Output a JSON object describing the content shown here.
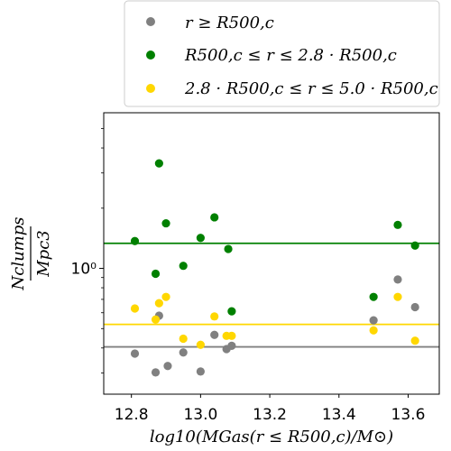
{
  "chart_data": {
    "type": "scatter",
    "x_label": "log10(MGas(r ≤ R500,c)/M⊙)",
    "y_label_numerator": "Nclumps",
    "y_label_denominator": "Mpc3",
    "y_scale": "log",
    "xlim": [
      12.72,
      13.69
    ],
    "ylim": [
      0.235,
      6.0
    ],
    "x_ticks": [
      12.8,
      13.0,
      13.2,
      13.4,
      13.6
    ],
    "x_tick_labels": [
      "12.8",
      "13.0",
      "13.2",
      "13.4",
      "13.6"
    ],
    "y_major_ticks": [
      1.0
    ],
    "y_major_tick_labels": [
      "10⁰"
    ],
    "y_minor_ticks": [
      0.3,
      0.4,
      0.5,
      0.6,
      0.7,
      0.8,
      0.9,
      2,
      3,
      4,
      5
    ],
    "legend": {
      "position": "above-plot",
      "entries": [
        {
          "series": 0,
          "label": "r ≥ R500,c"
        },
        {
          "series": 1,
          "label": "R500,c ≤ r ≤ 2.8 · R500,c"
        },
        {
          "series": 2,
          "label": "2.8 · R500,c ≤ r ≤ 5.0 · R500,c"
        }
      ]
    },
    "series": [
      {
        "color": "#808080",
        "points": [
          {
            "x": 12.81,
            "y": 0.375
          },
          {
            "x": 12.87,
            "y": 0.302
          },
          {
            "x": 12.88,
            "y": 0.58
          },
          {
            "x": 12.905,
            "y": 0.325
          },
          {
            "x": 12.95,
            "y": 0.38
          },
          {
            "x": 13.0,
            "y": 0.305
          },
          {
            "x": 13.04,
            "y": 0.465
          },
          {
            "x": 13.075,
            "y": 0.395
          },
          {
            "x": 13.09,
            "y": 0.41
          },
          {
            "x": 13.5,
            "y": 0.55
          },
          {
            "x": 13.57,
            "y": 0.88
          },
          {
            "x": 13.62,
            "y": 0.64
          }
        ],
        "mean": 0.405
      },
      {
        "color": "#008000",
        "points": [
          {
            "x": 12.81,
            "y": 1.37
          },
          {
            "x": 12.87,
            "y": 0.94
          },
          {
            "x": 12.88,
            "y": 3.35
          },
          {
            "x": 12.9,
            "y": 1.68
          },
          {
            "x": 12.95,
            "y": 1.03
          },
          {
            "x": 13.0,
            "y": 1.42
          },
          {
            "x": 13.04,
            "y": 1.8
          },
          {
            "x": 13.08,
            "y": 1.25
          },
          {
            "x": 13.09,
            "y": 0.61
          },
          {
            "x": 13.5,
            "y": 0.72
          },
          {
            "x": 13.57,
            "y": 1.65
          },
          {
            "x": 13.62,
            "y": 1.3
          }
        ],
        "mean": 1.335
      },
      {
        "color": "#ffd700",
        "points": [
          {
            "x": 12.81,
            "y": 0.63
          },
          {
            "x": 12.87,
            "y": 0.555
          },
          {
            "x": 12.88,
            "y": 0.67
          },
          {
            "x": 12.9,
            "y": 0.72
          },
          {
            "x": 12.95,
            "y": 0.445
          },
          {
            "x": 13.0,
            "y": 0.415
          },
          {
            "x": 13.04,
            "y": 0.575
          },
          {
            "x": 13.075,
            "y": 0.46
          },
          {
            "x": 13.09,
            "y": 0.46
          },
          {
            "x": 13.5,
            "y": 0.49
          },
          {
            "x": 13.57,
            "y": 0.72
          },
          {
            "x": 13.62,
            "y": 0.435
          }
        ],
        "mean": 0.525
      }
    ]
  }
}
